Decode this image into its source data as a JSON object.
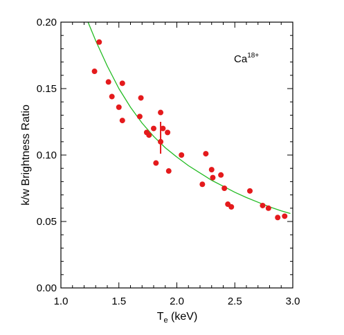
{
  "chart_data": {
    "type": "scatter",
    "xlabel_main": "T",
    "xlabel_sub": "e",
    "xlabel_unit": " (keV)",
    "ylabel": "k/w Brightness Ratio",
    "annotation_main": "Ca",
    "annotation_sup": "18+",
    "xlim": [
      1.0,
      3.0
    ],
    "ylim": [
      0.0,
      0.2
    ],
    "xticks": [
      1.0,
      1.5,
      2.0,
      2.5,
      3.0
    ],
    "xtick_labels": [
      "1.0",
      "1.5",
      "2.0",
      "2.5",
      "3.0"
    ],
    "yticks": [
      0.0,
      0.05,
      0.1,
      0.15,
      0.2
    ],
    "ytick_labels": [
      "0.00",
      "0.05",
      "0.10",
      "0.15",
      "0.20"
    ],
    "grid": false,
    "colors": {
      "points": "#e41a1c",
      "fit": "#22bb22",
      "axes": "#000000"
    },
    "points": [
      {
        "x": 1.29,
        "y": 0.163
      },
      {
        "x": 1.33,
        "y": 0.185
      },
      {
        "x": 1.41,
        "y": 0.155
      },
      {
        "x": 1.44,
        "y": 0.144
      },
      {
        "x": 1.5,
        "y": 0.136
      },
      {
        "x": 1.53,
        "y": 0.154
      },
      {
        "x": 1.53,
        "y": 0.126
      },
      {
        "x": 1.68,
        "y": 0.129
      },
      {
        "x": 1.69,
        "y": 0.143
      },
      {
        "x": 1.74,
        "y": 0.117
      },
      {
        "x": 1.76,
        "y": 0.115
      },
      {
        "x": 1.8,
        "y": 0.12
      },
      {
        "x": 1.82,
        "y": 0.094
      },
      {
        "x": 1.86,
        "y": 0.132
      },
      {
        "x": 1.86,
        "y": 0.11
      },
      {
        "x": 1.88,
        "y": 0.12
      },
      {
        "x": 1.92,
        "y": 0.117
      },
      {
        "x": 1.93,
        "y": 0.088
      },
      {
        "x": 2.04,
        "y": 0.1
      },
      {
        "x": 2.22,
        "y": 0.078
      },
      {
        "x": 2.25,
        "y": 0.101
      },
      {
        "x": 2.3,
        "y": 0.089
      },
      {
        "x": 2.31,
        "y": 0.083
      },
      {
        "x": 2.38,
        "y": 0.085
      },
      {
        "x": 2.41,
        "y": 0.075
      },
      {
        "x": 2.44,
        "y": 0.063
      },
      {
        "x": 2.47,
        "y": 0.061
      },
      {
        "x": 2.63,
        "y": 0.073
      },
      {
        "x": 2.74,
        "y": 0.062
      },
      {
        "x": 2.79,
        "y": 0.06
      },
      {
        "x": 2.87,
        "y": 0.053
      },
      {
        "x": 2.93,
        "y": 0.054
      }
    ],
    "error_bar": {
      "x": 1.86,
      "y_low": 0.101,
      "y_high": 0.125
    },
    "fit_curve": {
      "name": "",
      "x": [
        1.22,
        1.3,
        1.4,
        1.5,
        1.6,
        1.7,
        1.8,
        1.9,
        2.0,
        2.1,
        2.2,
        2.3,
        2.4,
        2.5,
        2.6,
        2.7,
        2.8,
        2.9,
        2.98
      ],
      "y": [
        0.203,
        0.186,
        0.167,
        0.15,
        0.136,
        0.124,
        0.114,
        0.1055,
        0.0985,
        0.092,
        0.0865,
        0.081,
        0.0765,
        0.072,
        0.068,
        0.0645,
        0.061,
        0.058,
        0.056
      ]
    }
  }
}
